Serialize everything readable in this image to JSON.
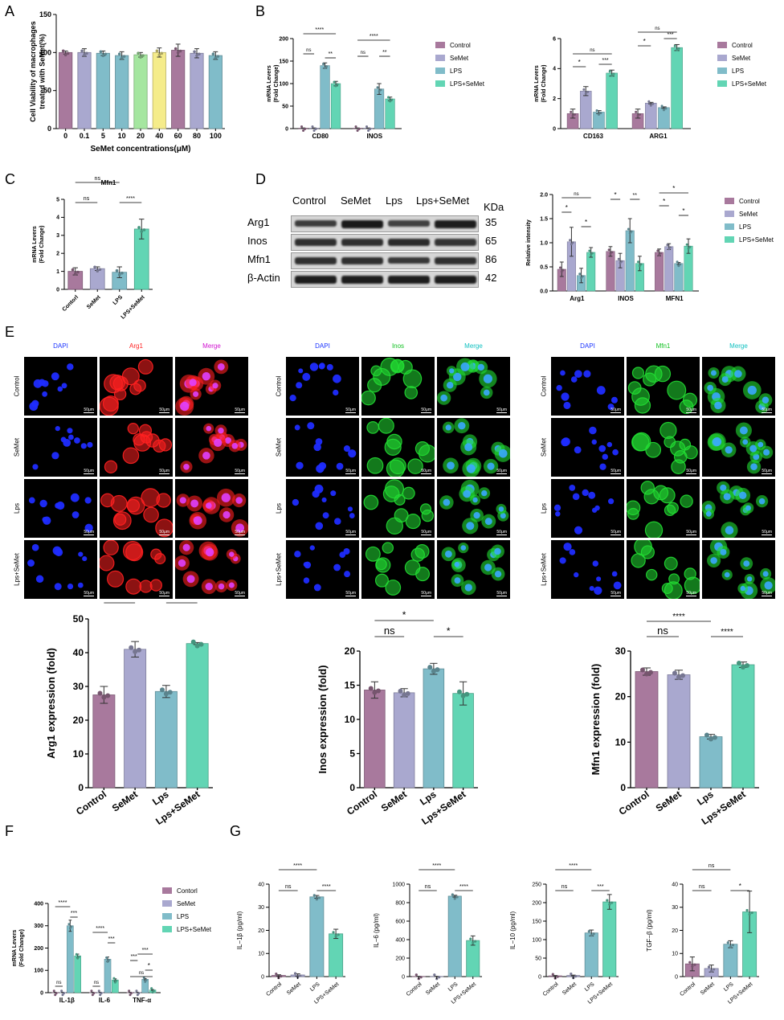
{
  "panels": [
    "A",
    "B",
    "C",
    "D",
    "E",
    "F",
    "G"
  ],
  "colors": {
    "control": "#a8799d",
    "semet": "#a9a8cf",
    "lps": "#80bcc9",
    "lpsse": "#62d5b4",
    "a_green": "#a5e6a0",
    "a_yellow": "#f5ec8a"
  },
  "chart_data": [
    {
      "id": "A",
      "type": "bar",
      "categories": [
        "0",
        "0.1",
        "5",
        "10",
        "20",
        "40",
        "60",
        "80",
        "100"
      ],
      "values": [
        100,
        100,
        99,
        96,
        97,
        100,
        103,
        99,
        96
      ],
      "errors": [
        2,
        5,
        3,
        5,
        3,
        6,
        8,
        6,
        5
      ],
      "bar_colors": [
        "#a8799d",
        "#a9a8cf",
        "#80bcc9",
        "#80bcc9",
        "#a5e6a0",
        "#f5ec8a",
        "#a8799d",
        "#a9a8cf",
        "#80bcc9"
      ],
      "xlabel": "SeMet concentrations(μM)",
      "ylabel": "Cell Viability of macrophages treated with SeMet(%)",
      "ylim": [
        0,
        150
      ],
      "yticks": [
        0,
        50,
        100,
        150
      ]
    },
    {
      "id": "B1",
      "type": "bar",
      "categories": [
        "CD80",
        "INOS"
      ],
      "series": [
        {
          "name": "Control",
          "values": [
            1,
            1
          ]
        },
        {
          "name": "SeMet",
          "values": [
            1,
            1
          ]
        },
        {
          "name": "LPS",
          "values": [
            140,
            88
          ]
        },
        {
          "name": "LPS+SeMet",
          "values": [
            100,
            66
          ]
        }
      ],
      "errors": [
        [
          0.5,
          0.5
        ],
        [
          0.5,
          0.5
        ],
        [
          6,
          12
        ],
        [
          5,
          4
        ]
      ],
      "ylabel": "mRNA Levers (Fold Change)",
      "ylim": [
        0,
        200
      ],
      "yticks": [
        0,
        50,
        100,
        150,
        200
      ],
      "sig": [
        [
          "CD80",
          "****"
        ],
        [
          "CD80",
          "ns"
        ],
        [
          "CD80",
          "**"
        ],
        [
          "INOS",
          "****"
        ],
        [
          "INOS",
          "ns"
        ],
        [
          "INOS",
          "**"
        ]
      ]
    },
    {
      "id": "B2",
      "type": "bar",
      "categories": [
        "CD163",
        "ARG1"
      ],
      "series": [
        {
          "name": "Control",
          "values": [
            1,
            1
          ]
        },
        {
          "name": "SeMet",
          "values": [
            2.5,
            1.7
          ]
        },
        {
          "name": "LPS",
          "values": [
            1.1,
            1.4
          ]
        },
        {
          "name": "LPS+SeMet",
          "values": [
            3.7,
            5.4
          ]
        }
      ],
      "errors": [
        [
          0.3,
          0.3
        ],
        [
          0.3,
          0.05
        ],
        [
          0.1,
          0.05
        ],
        [
          0.2,
          0.2
        ]
      ],
      "ylabel": "mRNA Levers (Fold Change)",
      "ylim": [
        0,
        6
      ],
      "yticks": [
        0,
        2,
        4,
        6
      ],
      "legend": [
        "Control",
        "SeMet",
        "LPS",
        "LPS+SeMet"
      ]
    },
    {
      "id": "C",
      "type": "bar",
      "title": "Mfn1",
      "categories": [
        "Contorl",
        "SeMet",
        "LPS",
        "LPS+SeMet"
      ],
      "values": [
        1,
        1.15,
        0.95,
        3.35
      ],
      "errors": [
        0.2,
        0.1,
        0.3,
        0.55
      ],
      "ylabel": "mRNA Levers (Fold Change)",
      "ylim": [
        0,
        5
      ],
      "yticks": [
        0,
        1,
        2,
        3,
        4,
        5
      ]
    },
    {
      "id": "D",
      "type": "bar",
      "categories": [
        "Arg1",
        "INOS",
        "MFN1"
      ],
      "series": [
        {
          "name": "Control",
          "values": [
            0.45,
            0.82,
            0.8
          ]
        },
        {
          "name": "SeMet",
          "values": [
            1.02,
            0.63,
            0.92
          ]
        },
        {
          "name": "LPS",
          "values": [
            0.32,
            1.25,
            0.57
          ]
        },
        {
          "name": "LPS+SeMet",
          "values": [
            0.8,
            0.57,
            0.93
          ]
        }
      ],
      "errors": [
        [
          0.15,
          0.1,
          0.07
        ],
        [
          0.3,
          0.15,
          0.06
        ],
        [
          0.15,
          0.25,
          0.02
        ],
        [
          0.1,
          0.15,
          0.15
        ]
      ],
      "ylabel": "Relative intensity",
      "ylim": [
        0,
        2
      ],
      "yticks": [
        0.0,
        0.5,
        1.0,
        1.5,
        2.0
      ],
      "legend": [
        "Control",
        "SeMet",
        "LPS",
        "LPS+SeMet"
      ]
    },
    {
      "id": "E1",
      "type": "bar",
      "categories": [
        "Control",
        "SeMet",
        "Lps",
        "Lps+SeMet"
      ],
      "values": [
        27.5,
        41,
        28.5,
        42.7
      ],
      "errors": [
        2.5,
        2.3,
        1.8,
        0.3
      ],
      "ylabel": "Arg1 expression  (fold)",
      "ylim": [
        0,
        50
      ],
      "yticks": [
        0,
        10,
        20,
        30,
        40,
        50
      ]
    },
    {
      "id": "E2",
      "type": "bar",
      "categories": [
        "Control",
        "SeMet",
        "Lps",
        "Lps+SeMet"
      ],
      "values": [
        14.3,
        13.9,
        17.4,
        13.8
      ],
      "errors": [
        1.2,
        0.6,
        0.8,
        1.7
      ],
      "ylabel": "Inos expression  (fold)",
      "ylim": [
        0,
        20
      ],
      "yticks": [
        0,
        5,
        10,
        15,
        20
      ]
    },
    {
      "id": "E3",
      "type": "bar",
      "categories": [
        "Control",
        "SeMet",
        "Lps",
        "Lps+SeMet"
      ],
      "values": [
        25.5,
        24.8,
        11.2,
        27
      ],
      "errors": [
        0.8,
        1,
        0.5,
        0.6
      ],
      "ylabel": "Mfn1 expression  (fold)",
      "ylim": [
        0,
        30
      ],
      "yticks": [
        0,
        10,
        20,
        30
      ]
    },
    {
      "id": "F",
      "type": "bar",
      "categories": [
        "IL-1β",
        "IL-6",
        "TNF-α"
      ],
      "series": [
        {
          "name": "Control",
          "values": [
            1,
            1,
            1
          ]
        },
        {
          "name": "SeMet",
          "values": [
            1,
            1,
            1
          ]
        },
        {
          "name": "LPS",
          "values": [
            300,
            150,
            60
          ]
        },
        {
          "name": "LPS+SeMet",
          "values": [
            165,
            57,
            12
          ]
        }
      ],
      "errors": [
        [
          1,
          1,
          1
        ],
        [
          1,
          1,
          1
        ],
        [
          25,
          10,
          3
        ],
        [
          8,
          5,
          2
        ]
      ],
      "ylabel": "mRNA Levers (Fold Change)",
      "ylim": [
        0,
        400
      ],
      "yticks": [
        0,
        100,
        200,
        300,
        400
      ],
      "legend": [
        "Contorl",
        "SeMet",
        "LPS",
        "LPS+SeMet"
      ]
    },
    {
      "id": "G1",
      "type": "bar",
      "categories": [
        "Control",
        "SeMet",
        "LPS",
        "LPS+SeMet"
      ],
      "values": [
        0.5,
        0.7,
        34.5,
        18.5
      ],
      "errors": [
        0.3,
        0.5,
        0.6,
        2
      ],
      "ylabel": "IL−1β  (pg/ml)",
      "ylim": [
        0,
        40
      ],
      "yticks": [
        0,
        10,
        20,
        30,
        40
      ]
    },
    {
      "id": "G2",
      "type": "bar",
      "categories": [
        "Control",
        "SeMet",
        "LPS",
        "LPS+SeMet"
      ],
      "values": [
        2,
        2,
        870,
        390
      ],
      "errors": [
        1,
        1,
        10,
        50
      ],
      "ylabel": "IL−6  (pg/ml)",
      "ylim": [
        0,
        1000
      ],
      "yticks": [
        0,
        200,
        400,
        600,
        800,
        1000
      ]
    },
    {
      "id": "G3",
      "type": "bar",
      "categories": [
        "Control",
        "SeMet",
        "LPS",
        "LPS+SeMet"
      ],
      "values": [
        2,
        3,
        118,
        202
      ],
      "errors": [
        1,
        1,
        8,
        20
      ],
      "ylabel": "IL−10  (pg/ml)",
      "ylim": [
        0,
        250
      ],
      "yticks": [
        0,
        50,
        100,
        150,
        200,
        250
      ]
    },
    {
      "id": "G4",
      "type": "bar",
      "categories": [
        "Control",
        "SeMet",
        "LPS",
        "LPS+SeMet"
      ],
      "values": [
        5.5,
        3.5,
        14,
        28
      ],
      "errors": [
        3,
        1.5,
        1.5,
        9
      ],
      "ylabel": "TGF−β  (pg/ml)",
      "ylim": [
        0,
        40
      ],
      "yticks": [
        0,
        10,
        20,
        30,
        40
      ]
    }
  ],
  "western": {
    "headers": [
      "Control",
      "SeMet",
      "Lps",
      "Lps+SeMet"
    ],
    "kda_label": "KDa",
    "rows": [
      {
        "name": "Arg1",
        "kda": "35"
      },
      {
        "name": "Inos",
        "kda": "65"
      },
      {
        "name": "Mfn1",
        "kda": "86"
      },
      {
        "name": "β-Actin",
        "kda": "42"
      }
    ]
  },
  "micro": {
    "groups": [
      {
        "cols": [
          "DAPI",
          "Arg1",
          "Merge"
        ]
      },
      {
        "cols": [
          "DAPI",
          "Inos",
          "Merge"
        ]
      },
      {
        "cols": [
          "DAPI",
          "Mfn1",
          "Merge"
        ]
      }
    ],
    "rows": [
      "Control",
      "SeMet",
      "Lps",
      "Lps+SeMet"
    ],
    "scale": "50μm"
  }
}
